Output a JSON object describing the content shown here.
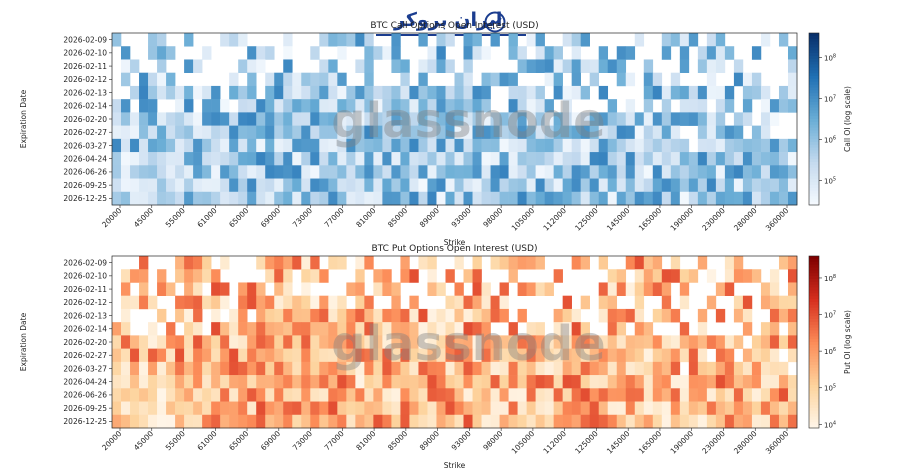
{
  "logo": {
    "brand_text": "ایران بروکر"
  },
  "watermark": "glassnode",
  "chart_data": [
    {
      "type": "heatmap",
      "title": "BTC Call Options Open Interest (USD)",
      "xlabel": "Strike",
      "ylabel": "Expiration Date",
      "colorbar_label": "Call OI (log scale)",
      "colormap": "Blues",
      "expirations": [
        "2026-02-09",
        "2026-02-10",
        "2026-02-11",
        "2026-02-12",
        "2026-02-13",
        "2026-02-14",
        "2026-02-20",
        "2026-02-27",
        "2026-03-27",
        "2026-04-24",
        "2026-06-26",
        "2026-09-25",
        "2026-12-25"
      ],
      "x_tick_labels": [
        "20000",
        "45000",
        "55000",
        "61000",
        "65000",
        "69000",
        "73000",
        "77000",
        "81000",
        "85000",
        "89000",
        "93000",
        "98000",
        "105000",
        "112000",
        "125000",
        "145000",
        "165000",
        "190000",
        "230000",
        "280000",
        "360000"
      ],
      "cbar_ticks": [
        "10^5",
        "10^6",
        "10^7",
        "10^8"
      ],
      "cbar_log_range": [
        4.4,
        8.6
      ]
    },
    {
      "type": "heatmap",
      "title": "BTC Put Options Open Interest (USD)",
      "xlabel": "Strike",
      "ylabel": "Expiration Date",
      "colorbar_label": "Put OI (log scale)",
      "colormap": "OrRd",
      "expirations": [
        "2026-02-09",
        "2026-02-10",
        "2026-02-11",
        "2026-02-12",
        "2026-02-13",
        "2026-02-14",
        "2026-02-20",
        "2026-02-27",
        "2026-03-27",
        "2026-04-24",
        "2026-06-26",
        "2026-09-25",
        "2026-12-25"
      ],
      "x_tick_labels": [
        "20000",
        "45000",
        "55000",
        "61000",
        "65000",
        "69000",
        "73000",
        "77000",
        "81000",
        "85000",
        "89000",
        "93000",
        "98000",
        "105000",
        "112000",
        "125000",
        "145000",
        "165000",
        "190000",
        "230000",
        "280000",
        "360000"
      ],
      "cbar_ticks": [
        "10^4",
        "10^5",
        "10^6",
        "10^7",
        "10^8"
      ],
      "cbar_log_range": [
        3.9,
        8.6
      ]
    }
  ],
  "colors": {
    "call_dark": "#08306b",
    "call_light": "#deebf7",
    "put_dark": "#7f0000",
    "put_light": "#fee8c8"
  }
}
